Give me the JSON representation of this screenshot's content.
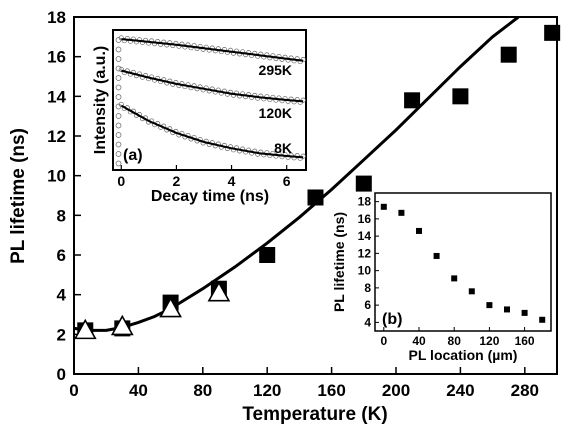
{
  "chart_data": [
    {
      "type": "scatter",
      "xlabel": "Temperature (K)",
      "ylabel": "PL lifetime (ns)",
      "xlim": [
        0,
        300
      ],
      "ylim": [
        0,
        18
      ],
      "xticks": [
        0,
        40,
        80,
        120,
        160,
        200,
        240,
        280
      ],
      "yticks": [
        0,
        2,
        4,
        6,
        8,
        10,
        12,
        14,
        16,
        18
      ],
      "series": [
        {
          "marker": "filled-square",
          "color": "#000000",
          "points": [
            [
              7,
              2.2
            ],
            [
              30,
              2.3
            ],
            [
              60,
              3.6
            ],
            [
              90,
              4.3
            ],
            [
              120,
              6.0
            ],
            [
              150,
              8.9
            ],
            [
              180,
              9.6
            ],
            [
              210,
              13.8
            ],
            [
              240,
              14.0
            ],
            [
              270,
              16.1
            ],
            [
              297,
              17.2
            ]
          ]
        },
        {
          "marker": "open-triangle",
          "color": "#000000",
          "points": [
            [
              7,
              2.2
            ],
            [
              30,
              2.4
            ],
            [
              60,
              3.3
            ],
            [
              90,
              4.1
            ]
          ]
        },
        {
          "type": "line",
          "color": "#000000",
          "points": [
            [
              0,
              2.3
            ],
            [
              10,
              2.2
            ],
            [
              20,
              2.2
            ],
            [
              30,
              2.35
            ],
            [
              40,
              2.6
            ],
            [
              50,
              2.9
            ],
            [
              60,
              3.3
            ],
            [
              80,
              4.3
            ],
            [
              100,
              5.4
            ],
            [
              120,
              6.6
            ],
            [
              140,
              7.9
            ],
            [
              160,
              9.3
            ],
            [
              180,
              10.8
            ],
            [
              200,
              12.3
            ],
            [
              220,
              13.9
            ],
            [
              240,
              15.5
            ],
            [
              260,
              17.0
            ],
            [
              276,
              18.0
            ]
          ]
        }
      ]
    },
    {
      "type": "line",
      "panel_label": "(a)",
      "xlabel": "Decay time (ns)",
      "ylabel": "Intensity (a.u.)",
      "xlim": [
        -0.3,
        6.7
      ],
      "xticks": [
        0,
        2,
        4,
        6
      ],
      "legend_labels": [
        "295K",
        "120K",
        "8K"
      ],
      "series": [
        {
          "name": "295K",
          "x": [
            0,
            1,
            2,
            3,
            4,
            5,
            6,
            6.6
          ],
          "y": [
            0.935,
            0.915,
            0.895,
            0.87,
            0.845,
            0.82,
            0.795,
            0.78
          ]
        },
        {
          "name": "120K",
          "x": [
            0,
            1,
            2,
            3,
            4,
            5,
            6,
            6.6
          ],
          "y": [
            0.71,
            0.66,
            0.615,
            0.58,
            0.545,
            0.52,
            0.5,
            0.49
          ]
        },
        {
          "name": "8K",
          "x": [
            0,
            1,
            2,
            3,
            4,
            5,
            6,
            6.6
          ],
          "y": [
            0.46,
            0.35,
            0.265,
            0.2,
            0.155,
            0.12,
            0.1,
            0.09
          ]
        }
      ]
    },
    {
      "type": "scatter",
      "panel_label": "(b)",
      "xlabel": "PL location (µm)",
      "ylabel": "PL lifetime (ns)",
      "xlim": [
        -10,
        190
      ],
      "ylim": [
        3,
        19
      ],
      "xticks": [
        0,
        40,
        80,
        120,
        160
      ],
      "yticks": [
        4,
        6,
        8,
        10,
        12,
        14,
        16,
        18
      ],
      "series": [
        {
          "marker": "filled-square",
          "x": [
            0,
            20,
            40,
            60,
            80,
            100,
            120,
            140,
            160,
            180
          ],
          "y": [
            17.4,
            16.7,
            14.6,
            11.7,
            9.1,
            7.6,
            6.0,
            5.5,
            5.1,
            4.3
          ]
        }
      ]
    }
  ]
}
